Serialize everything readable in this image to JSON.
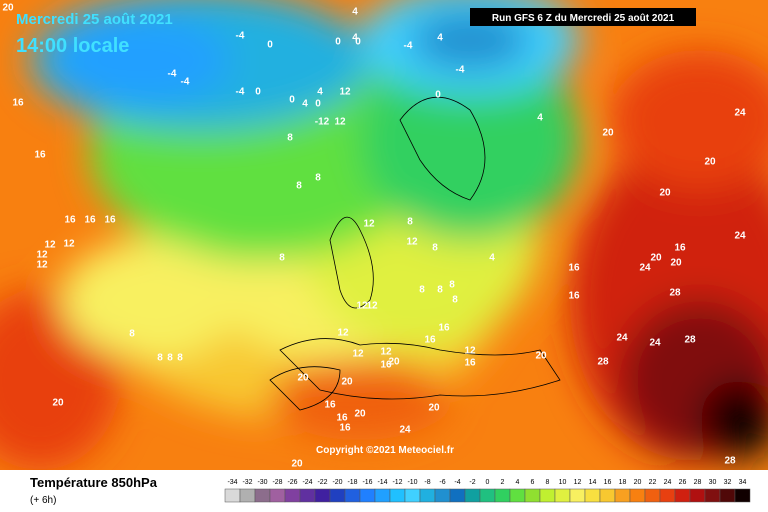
{
  "header": {
    "date": "Mercredi 25 août 2021",
    "time": "14:00 locale",
    "run": "Run GFS 6 Z du Mercredi 25 août 2021"
  },
  "footer": {
    "title": "Température 850hPa",
    "subtitle": "(+ 6h)",
    "copyright": "Copyright ©2021 Meteociel.fr"
  },
  "legend": {
    "values": [
      -34,
      -32,
      -30,
      -28,
      -26,
      -24,
      -22,
      -20,
      -18,
      -16,
      -14,
      -12,
      -10,
      -8,
      -6,
      -4,
      -2,
      0,
      2,
      4,
      6,
      8,
      10,
      12,
      14,
      16,
      18,
      20,
      22,
      24,
      26,
      28,
      30,
      32,
      34
    ],
    "colors": [
      "#d9d9d9",
      "#b0b0b0",
      "#8c6d8c",
      "#a060a0",
      "#8040a0",
      "#6030a0",
      "#4020a0",
      "#2040c0",
      "#2060e0",
      "#2080ff",
      "#20a0ff",
      "#20c0ff",
      "#40d0ff",
      "#20b0e0",
      "#2090d0",
      "#1070c0",
      "#10a0a0",
      "#20c080",
      "#30d060",
      "#60e040",
      "#90e030",
      "#c0f030",
      "#e0f040",
      "#f8f060",
      "#f8e040",
      "#f8c830",
      "#f8a020",
      "#f88010",
      "#f06010",
      "#e84010",
      "#d02010",
      "#b01010",
      "#801010",
      "#500808",
      "#100000"
    ]
  },
  "map_labels": [
    20,
    4,
    4,
    0,
    0,
    -4,
    -4,
    -4,
    0,
    -4,
    0,
    4,
    0,
    0,
    4,
    12,
    12,
    -12,
    -4,
    -4,
    4,
    0,
    4,
    20,
    24,
    20,
    20,
    16,
    24,
    20,
    24,
    20,
    28,
    24,
    24,
    28,
    28,
    20,
    16,
    16,
    16,
    16,
    16,
    12,
    12,
    16,
    12,
    12,
    12,
    12,
    12,
    12,
    8,
    8,
    4,
    8,
    8,
    8,
    8,
    8,
    8,
    8,
    8,
    8,
    8,
    8,
    8,
    16,
    16,
    16,
    16,
    16,
    12,
    12,
    12,
    12,
    20,
    20,
    20,
    20,
    16,
    16,
    20,
    16,
    20,
    24,
    20,
    28
  ]
}
